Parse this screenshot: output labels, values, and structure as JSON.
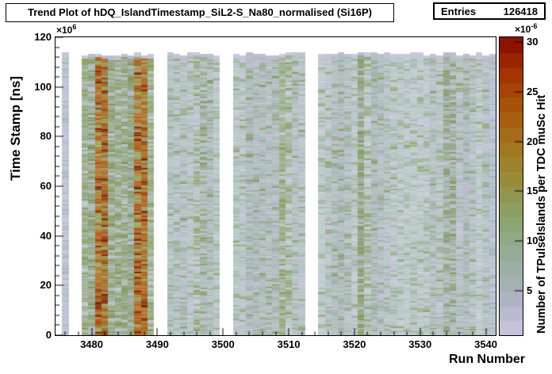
{
  "title": "Trend Plot of hDQ_IslandTimestamp_SiL2-S_Na80_normalised (Si16P)",
  "stats": {
    "label": "Entries",
    "value": "126418"
  },
  "axes": {
    "y_power": {
      "base": "×10",
      "exp": "6"
    },
    "z_power": {
      "base": "×10",
      "exp": "-6"
    }
  },
  "chart_data": {
    "type": "heatmap",
    "title": "Trend Plot of hDQ_IslandTimestamp_SiL2-S_Na80_normalised (Si16P)",
    "entries": 126418,
    "xlabel": "Run Number",
    "ylabel": "Time Stamp [ns]",
    "zlabel": "Number of TPulseIslands per TDC muSc Hit",
    "x_range": [
      3474.5,
      3541.5
    ],
    "x_major_ticks": [
      3480,
      3490,
      3500,
      3510,
      3520,
      3530,
      3540
    ],
    "x_minor_step": 2,
    "y_range": [
      0,
      120
    ],
    "y_unit_factor": "1e6",
    "y_major_ticks": [
      0,
      20,
      40,
      60,
      80,
      100,
      120
    ],
    "y_minor_step": 4,
    "y_data_top": 113,
    "z_range": [
      0.5,
      30.5
    ],
    "z_ticks": [
      5,
      10,
      15,
      20,
      25,
      30
    ],
    "z_unit_factor": "1e-6",
    "grid": false,
    "legend_position": "right-colorbar",
    "run_blocks": [
      [
        3476,
        3476
      ],
      [
        3479,
        3489
      ],
      [
        3492,
        3499
      ],
      [
        3502,
        3512
      ],
      [
        3515,
        3541
      ]
    ],
    "hot_runs": [
      3481,
      3482,
      3487,
      3488
    ],
    "olive_runs": [
      3479,
      3480,
      3483,
      3484,
      3485,
      3486,
      3489,
      3509,
      3521
    ],
    "faint_olive_runs": [
      3496,
      3497,
      3510,
      3522,
      3534,
      3535
    ],
    "light_runs": [
      3476,
      3541
    ],
    "colorbar_palette": [
      "#c7c2d9",
      "#bbb9cf",
      "#aeb2c2",
      "#a3b1b5",
      "#9cb0a6",
      "#96ac97",
      "#90a987",
      "#8da475",
      "#8e9d62",
      "#93944e",
      "#998b3a",
      "#9e812b",
      "#a27720",
      "#a56b18",
      "#a75e11",
      "#a7510b",
      "#a54406",
      "#a23503",
      "#9a2401",
      "#8e1200"
    ],
    "row_palettes": {
      "cap": "#c5c1d6",
      "normal": [
        [
          "#b0c0c0",
          40
        ],
        [
          "#b8c5c7",
          18
        ],
        [
          "#a4b6b1",
          15
        ],
        [
          "#9eb1a2",
          7
        ],
        [
          "#c2c0d3",
          12
        ],
        [
          "#99aa89",
          6
        ],
        [
          "#8ea274",
          2
        ]
      ],
      "olive": [
        [
          "#9cad93",
          22
        ],
        [
          "#93a67f",
          24
        ],
        [
          "#8ba06c",
          16
        ],
        [
          "#a7b5a8",
          14
        ],
        [
          "#b0bfbc",
          10
        ],
        [
          "#c1c0d3",
          6
        ],
        [
          "#84995d",
          8
        ]
      ],
      "faint": [
        [
          "#b0c0c0",
          26
        ],
        [
          "#b8c5c7",
          10
        ],
        [
          "#a3b5a6",
          18
        ],
        [
          "#9aac90",
          16
        ],
        [
          "#92a57c",
          12
        ],
        [
          "#c2c0d3",
          10
        ],
        [
          "#8b9f6a",
          8
        ]
      ],
      "hot": [
        [
          "#b26d26",
          28
        ],
        [
          "#aa5f1a",
          18
        ],
        [
          "#9d4d12",
          10
        ],
        [
          "#8a2e0b",
          8
        ],
        [
          "#7c2209",
          3
        ],
        [
          "#a5802f",
          10
        ],
        [
          "#97a055",
          9
        ],
        [
          "#8fa26b",
          9
        ],
        [
          "#ab8440",
          5
        ]
      ],
      "light": [
        [
          "#b5c2cf",
          33
        ],
        [
          "#bcc5d3",
          22
        ],
        [
          "#c4c3d7",
          16
        ],
        [
          "#adbdc4",
          20
        ],
        [
          "#a5b6bf",
          9
        ]
      ]
    }
  }
}
